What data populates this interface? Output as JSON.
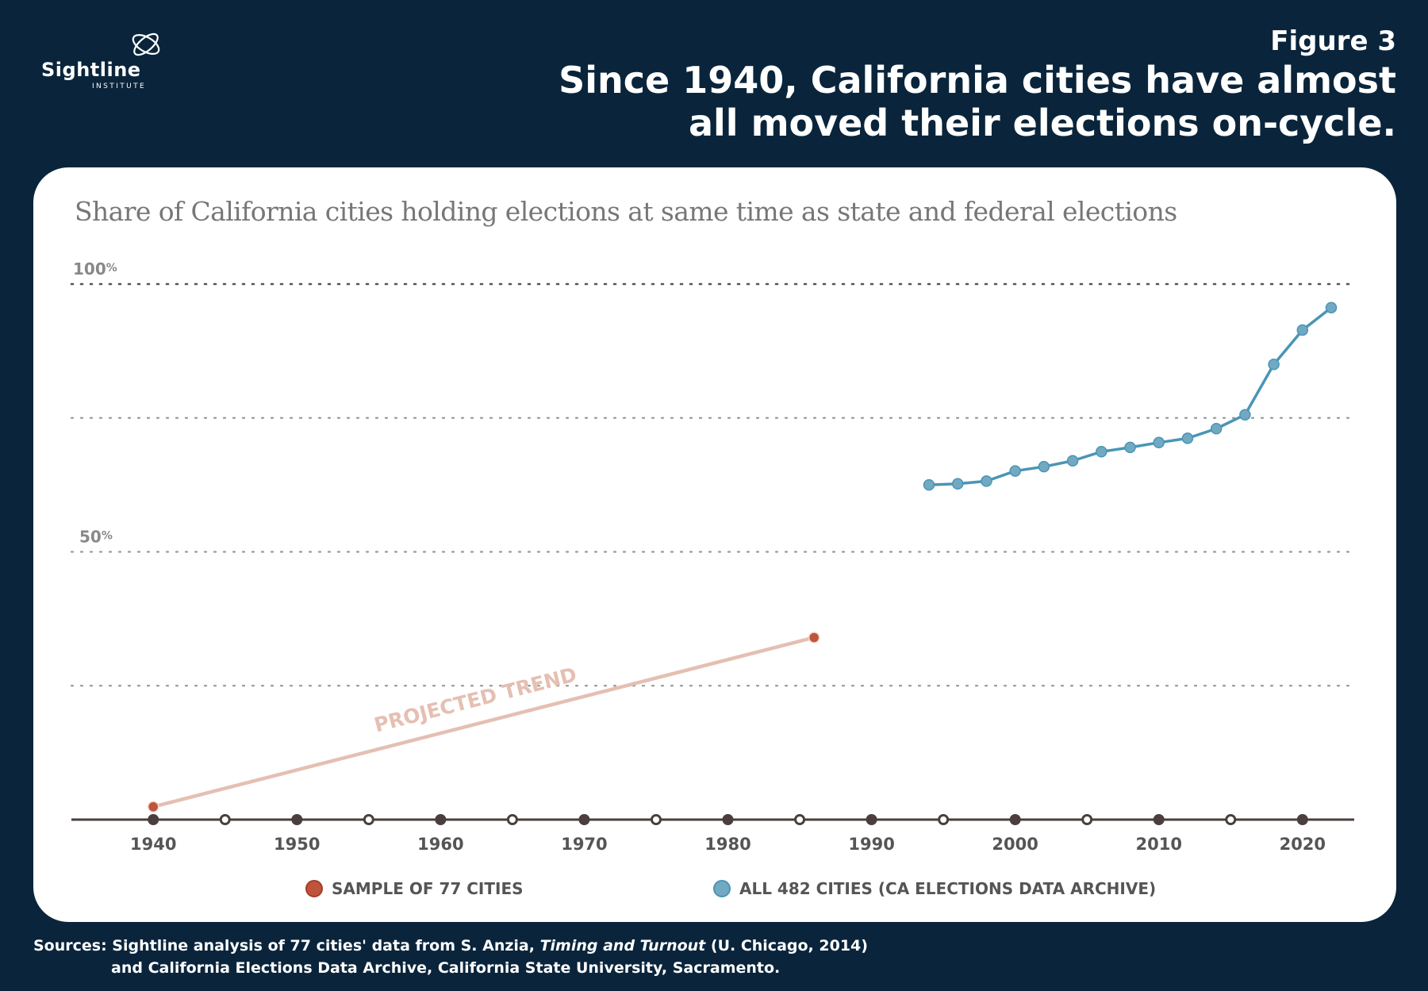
{
  "logo": {
    "name": "Sightline",
    "sub": "INSTITUTE"
  },
  "figure_label": "Figure 3",
  "headline": "Since 1940, California cities have almost all moved their elections on-cycle.",
  "sources": {
    "prefix": "Sources: Sightline analysis of 77 cities' data from S. Anzia, ",
    "book": "Timing and Turnout",
    "suffix": " (U. Chicago, 2014)",
    "line2": "and California Elections Data Archive, California State University, Sacramento."
  },
  "colors": {
    "background": "#0a253b",
    "sample": "#c0533c",
    "all_cities": "#4a95b5",
    "trend": "#e5bfb2",
    "axis": "#4a3f3c"
  },
  "chart_data": {
    "type": "line",
    "title": "Share of California cities holding elections at same time as state and federal elections",
    "ylim": [
      0,
      100
    ],
    "xlim": [
      1934.3,
      2023.6
    ],
    "y_ticks": [
      0,
      25,
      50,
      75,
      100
    ],
    "y_tick_labels": [
      {
        "value": 100,
        "label": "100%"
      },
      {
        "value": 50,
        "label": "50%"
      }
    ],
    "x_ticks": [
      1940,
      1950,
      1960,
      1970,
      1980,
      1990,
      2000,
      2010,
      2020
    ],
    "x_minor_ticks": [
      1945,
      1955,
      1965,
      1975,
      1985,
      1995,
      2005,
      2015
    ],
    "grid": "horizontal dotted",
    "legend_position": "bottom",
    "annotation": "Projected trend",
    "series": [
      {
        "name": "Sample of 77 cities",
        "style": "endpoints with projected trend line",
        "x": [
          1940,
          1986
        ],
        "y": [
          2.4,
          34
        ]
      },
      {
        "name": "All 482 cities (CA Elections Data Archive)",
        "style": "line with markers",
        "x": [
          1994,
          1996,
          1998,
          2000,
          2002,
          2004,
          2006,
          2008,
          2010,
          2012,
          2014,
          2016,
          2018,
          2020,
          2022
        ],
        "y": [
          62.5,
          62.7,
          63.2,
          65.1,
          65.9,
          67.0,
          68.7,
          69.5,
          70.4,
          71.2,
          73.0,
          75.6,
          85.0,
          91.4,
          95.6
        ]
      }
    ]
  }
}
